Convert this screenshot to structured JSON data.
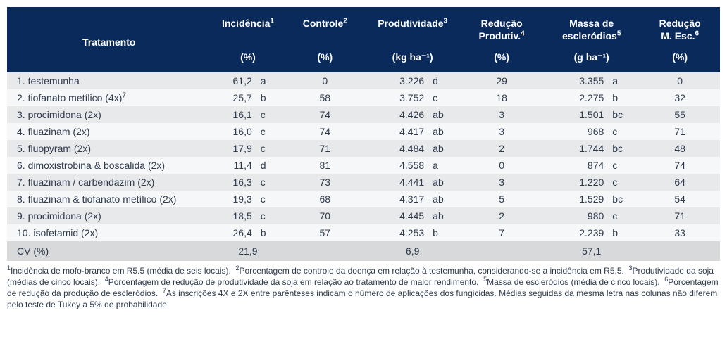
{
  "colors": {
    "header_bg": "#0a2a5c",
    "header_fg": "#ffffff",
    "row_odd_bg": "#e8e9ea",
    "row_even_bg": "#f6f7f8",
    "cv_row_bg": "#d8d9db",
    "text_color": "#2e3b4e"
  },
  "columns": {
    "tratamento": {
      "label": "Tratamento",
      "unit": ""
    },
    "incidencia": {
      "label": "Incidência",
      "sup": "1",
      "unit": "(%)"
    },
    "controle": {
      "label": "Controle",
      "sup": "2",
      "unit": "(%)"
    },
    "produtividade": {
      "label": "Produtividade",
      "sup": "3",
      "unit": "(kg ha⁻¹)"
    },
    "red_prod": {
      "label": "Redução Produtiv.",
      "sup": "4",
      "unit": "(%)"
    },
    "massa_escl": {
      "label": "Massa de escleródios",
      "sup": "5",
      "unit": "(g ha⁻¹)"
    },
    "red_escl": {
      "label": "Redução M. Esc.",
      "sup": "6",
      "unit": "(%)"
    }
  },
  "rows": [
    {
      "t": "1. testemunha",
      "inc": "61,2",
      "inc_l": "a",
      "ctl": "0",
      "prod": "3.226",
      "prod_l": "d",
      "rp": "29",
      "me": "3.355",
      "me_l": "a",
      "re": "0"
    },
    {
      "t": "2. tiofanato metílico (4x)",
      "t_sup": "7",
      "inc": "25,7",
      "inc_l": "b",
      "ctl": "58",
      "prod": "3.752",
      "prod_l": "c",
      "rp": "18",
      "me": "2.275",
      "me_l": "b",
      "re": "32"
    },
    {
      "t": "3. procimidona (2x)",
      "inc": "16,1",
      "inc_l": "c",
      "ctl": "74",
      "prod": "4.426",
      "prod_l": "ab",
      "rp": "3",
      "me": "1.501",
      "me_l": "bc",
      "re": "55"
    },
    {
      "t": "4. fluazinam (2x)",
      "inc": "16,0",
      "inc_l": "c",
      "ctl": "74",
      "prod": "4.417",
      "prod_l": "ab",
      "rp": "3",
      "me": "968",
      "me_l": "c",
      "re": "71"
    },
    {
      "t": "5. fluopyram (2x)",
      "inc": "17,9",
      "inc_l": "c",
      "ctl": "71",
      "prod": "4.484",
      "prod_l": "ab",
      "rp": "2",
      "me": "1.744",
      "me_l": "bc",
      "re": "48"
    },
    {
      "t": "6. dimoxistrobina & boscalida (2x)",
      "inc": "11,4",
      "inc_l": "d",
      "ctl": "81",
      "prod": "4.558",
      "prod_l": "a",
      "rp": "0",
      "me": "874",
      "me_l": "c",
      "re": "74"
    },
    {
      "t": "7. fluazinam / carbendazim (2x)",
      "inc": "16,3",
      "inc_l": "c",
      "ctl": "73",
      "prod": "4.441",
      "prod_l": "ab",
      "rp": "3",
      "me": "1.220",
      "me_l": "c",
      "re": "64"
    },
    {
      "t": "8. fluazinam & tiofanato metílico (2x)",
      "inc": "19,3",
      "inc_l": "c",
      "ctl": "68",
      "prod": "4.317",
      "prod_l": "ab",
      "rp": "5",
      "me": "1.529",
      "me_l": "bc",
      "re": "54"
    },
    {
      "t": "9. procimidona (2x)",
      "inc": "18,5",
      "inc_l": "c",
      "ctl": "70",
      "prod": "4.445",
      "prod_l": "ab",
      "rp": "2",
      "me": "980",
      "me_l": "c",
      "re": "71"
    },
    {
      "t": "10. isofetamid (2x)",
      "inc": "26,4",
      "inc_l": "b",
      "ctl": "57",
      "prod": "4.253",
      "prod_l": "b",
      "rp": "7",
      "me": "2.239",
      "me_l": "b",
      "re": "33"
    }
  ],
  "cv_row": {
    "label": "CV (%)",
    "inc": "21,9",
    "prod": "6,9",
    "me": "57,1"
  },
  "footnotes": {
    "1": "Incidência de mofo-branco em R5.5 (média de seis locais).",
    "2": "Porcentagem de controle da doença em relação à testemunha, considerando-se a incidência em R5.5.",
    "3": "Produtividade da soja (médias de cinco locais).",
    "4": "Porcentagem de redução de produtividade da soja em relação ao tratamento de maior rendimento.",
    "5": "Massa de escleródios (média de cinco locais).",
    "6": "Porcentagem de redução da produção de escleródios.",
    "7": "As inscrições 4X e 2X entre parênteses indicam o número de aplicações dos fungicidas. Médias seguidas da mesma letra nas colunas não diferem pelo teste de Tukey a 5% de probabilidade."
  }
}
